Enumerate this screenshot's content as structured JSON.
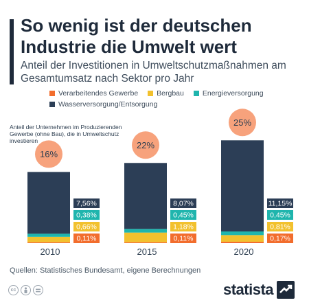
{
  "title": "So wenig ist der deutschen Industrie die Umwelt wert",
  "subtitle": "Anteil der Investitionen in Umweltschutzmaßnahmen am Gesamtumsatz nach Sektor pro Jahr",
  "inset_note": "Anteil der Unternehmen im Produzierenden Gewerbe (ohne Bau), die in Umweltschutz investieren",
  "source": "Quellen: Statistisches Bundesamt, eigene Berechnungen",
  "logo_text": "statista",
  "cc_icons": [
    "cc-icon",
    "person-icon",
    "equals-icon"
  ],
  "chart_data": {
    "type": "bar",
    "title": "So wenig ist der deutschen Industrie die Umwelt wert",
    "subtitle": "Anteil der Investitionen in Umweltschutzmaßnahmen am Gesamtumsatz nach Sektor pro Jahr",
    "categories": [
      "2010",
      "2015",
      "2020"
    ],
    "stacked": true,
    "series": [
      {
        "name": "Verarbeitendes Gewerbe",
        "values": [
          0.11,
          0.11,
          0.17
        ],
        "labels": [
          "0,11%",
          "0,11%",
          "0,17%"
        ],
        "color": "#f26d2d"
      },
      {
        "name": "Bergbau",
        "values": [
          0.66,
          1.18,
          0.81
        ],
        "labels": [
          "0,66%",
          "1,18%",
          "0,81%"
        ],
        "color": "#f2c12e"
      },
      {
        "name": "Energieversorgung",
        "values": [
          0.38,
          0.45,
          0.45
        ],
        "labels": [
          "0,38%",
          "0,45%",
          "0,45%"
        ],
        "color": "#1fb5ad"
      },
      {
        "name": "Wasserversorgung/Entsorgung",
        "values": [
          7.56,
          8.07,
          11.15
        ],
        "labels": [
          "7,56%",
          "8,07%",
          "11,15%"
        ],
        "color": "#2c3e56"
      }
    ],
    "company_share": {
      "values": [
        16,
        22,
        25
      ],
      "labels": [
        "16%",
        "22%",
        "25%"
      ],
      "color": "#f7a27c"
    },
    "legend_position": "top",
    "grid": false
  }
}
